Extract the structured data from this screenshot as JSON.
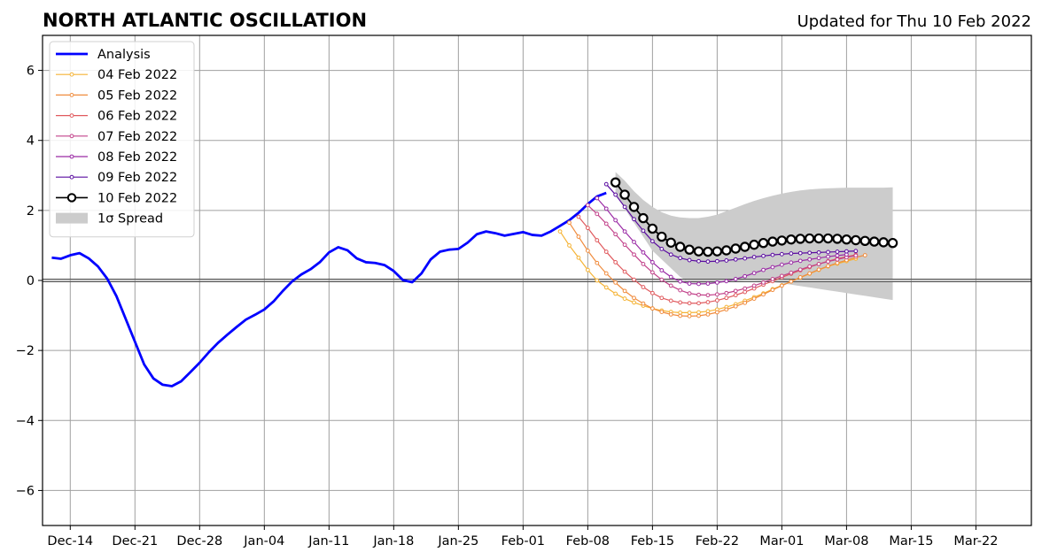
{
  "chart_data": {
    "type": "line",
    "title": "NORTH ATLANTIC OSCILLATION",
    "subtitle": "Updated for Thu 10 Feb 2022",
    "xlabel": "",
    "ylabel": "",
    "xlim": [
      "2021-12-11",
      "2022-03-28"
    ],
    "ylim": [
      -7,
      7
    ],
    "grid": true,
    "legend_position": "top-left",
    "x_ticks": [
      {
        "date": "2021-12-14",
        "label": "Dec-14"
      },
      {
        "date": "2021-12-21",
        "label": "Dec-21"
      },
      {
        "date": "2021-12-28",
        "label": "Dec-28"
      },
      {
        "date": "2022-01-04",
        "label": "Jan-04"
      },
      {
        "date": "2022-01-11",
        "label": "Jan-11"
      },
      {
        "date": "2022-01-18",
        "label": "Jan-18"
      },
      {
        "date": "2022-01-25",
        "label": "Jan-25"
      },
      {
        "date": "2022-02-01",
        "label": "Feb-01"
      },
      {
        "date": "2022-02-08",
        "label": "Feb-08"
      },
      {
        "date": "2022-02-15",
        "label": "Feb-15"
      },
      {
        "date": "2022-02-22",
        "label": "Feb-22"
      },
      {
        "date": "2022-03-01",
        "label": "Mar-01"
      },
      {
        "date": "2022-03-08",
        "label": "Mar-08"
      },
      {
        "date": "2022-03-15",
        "label": "Mar-15"
      },
      {
        "date": "2022-03-22",
        "label": "Mar-22"
      }
    ],
    "y_ticks": [
      {
        "value": -6,
        "label": "−6"
      },
      {
        "value": -4,
        "label": "−4"
      },
      {
        "value": -2,
        "label": "−2"
      },
      {
        "value": 0,
        "label": "0"
      },
      {
        "value": 2,
        "label": "2"
      },
      {
        "value": 4,
        "label": "4"
      },
      {
        "value": 6,
        "label": "6"
      }
    ],
    "series": [
      {
        "name": "Analysis",
        "color": "#0000ff",
        "style": "thick-line",
        "start": "2021-12-12",
        "values": [
          0.65,
          0.62,
          0.72,
          0.78,
          0.63,
          0.4,
          0.05,
          -0.45,
          -1.1,
          -1.75,
          -2.4,
          -2.8,
          -2.98,
          -3.02,
          -2.88,
          -2.62,
          -2.35,
          -2.05,
          -1.78,
          -1.55,
          -1.33,
          -1.12,
          -0.98,
          -0.83,
          -0.6,
          -0.3,
          -0.03,
          0.17,
          0.32,
          0.52,
          0.8,
          0.95,
          0.86,
          0.63,
          0.52,
          0.5,
          0.44,
          0.27,
          0.01,
          -0.05,
          0.2,
          0.6,
          0.82,
          0.88,
          0.9,
          1.08,
          1.32,
          1.4,
          1.35,
          1.28,
          1.33,
          1.38,
          1.3,
          1.28,
          1.4,
          1.56,
          1.72,
          1.93,
          2.18,
          2.4,
          2.5
        ]
      },
      {
        "name": "04 Feb 2022",
        "color": "#f5b335",
        "style": "thin-dots",
        "start": "2022-02-05",
        "values": [
          1.4,
          1.0,
          0.65,
          0.3,
          0.0,
          -0.2,
          -0.38,
          -0.52,
          -0.63,
          -0.72,
          -0.8,
          -0.86,
          -0.9,
          -0.92,
          -0.92,
          -0.91,
          -0.88,
          -0.83,
          -0.76,
          -0.68,
          -0.58,
          -0.48,
          -0.37,
          -0.25,
          -0.14,
          -0.03,
          0.08,
          0.19,
          0.3,
          0.4,
          0.48,
          0.55,
          0.62
        ]
      },
      {
        "name": "05 Feb 2022",
        "color": "#f08c3e",
        "style": "thin-dots",
        "start": "2022-02-06",
        "values": [
          1.65,
          1.25,
          0.85,
          0.5,
          0.2,
          -0.06,
          -0.3,
          -0.5,
          -0.66,
          -0.8,
          -0.9,
          -0.97,
          -1.01,
          -1.02,
          -1.01,
          -0.97,
          -0.91,
          -0.83,
          -0.74,
          -0.64,
          -0.52,
          -0.4,
          -0.27,
          -0.15,
          -0.03,
          0.09,
          0.2,
          0.31,
          0.41,
          0.5,
          0.58,
          0.66,
          0.72
        ]
      },
      {
        "name": "06 Feb 2022",
        "color": "#e05a5e",
        "style": "thin-dots",
        "start": "2022-02-07",
        "values": [
          1.82,
          1.5,
          1.15,
          0.82,
          0.52,
          0.25,
          0.02,
          -0.19,
          -0.36,
          -0.5,
          -0.58,
          -0.63,
          -0.65,
          -0.65,
          -0.62,
          -0.57,
          -0.5,
          -0.42,
          -0.33,
          -0.23,
          -0.12,
          -0.02,
          0.09,
          0.19,
          0.29,
          0.38,
          0.47,
          0.55,
          0.62,
          0.68,
          0.73
        ]
      },
      {
        "name": "07 Feb 2022",
        "color": "#c2428a",
        "style": "thin-dots",
        "start": "2022-02-08",
        "values": [
          2.15,
          1.9,
          1.62,
          1.32,
          1.02,
          0.74,
          0.47,
          0.23,
          0.02,
          -0.15,
          -0.28,
          -0.37,
          -0.41,
          -0.42,
          -0.4,
          -0.36,
          -0.3,
          -0.23,
          -0.15,
          -0.06,
          0.04,
          0.13,
          0.22,
          0.31,
          0.4,
          0.47,
          0.54,
          0.6,
          0.66,
          0.71
        ]
      },
      {
        "name": "08 Feb 2022",
        "color": "#9a2aa5",
        "style": "thin-dots",
        "start": "2022-02-09",
        "values": [
          2.35,
          2.05,
          1.72,
          1.4,
          1.1,
          0.8,
          0.52,
          0.29,
          0.1,
          -0.03,
          -0.09,
          -0.1,
          -0.09,
          -0.06,
          -0.02,
          0.04,
          0.12,
          0.21,
          0.3,
          0.38,
          0.45,
          0.51,
          0.56,
          0.6,
          0.64,
          0.68,
          0.71,
          0.74
        ]
      },
      {
        "name": "09 Feb 2022",
        "color": "#5a0ca0",
        "style": "thin-dots",
        "start": "2022-02-10",
        "values": [
          2.75,
          2.45,
          2.1,
          1.75,
          1.42,
          1.12,
          0.9,
          0.74,
          0.64,
          0.58,
          0.55,
          0.54,
          0.55,
          0.57,
          0.6,
          0.63,
          0.67,
          0.7,
          0.73,
          0.75,
          0.77,
          0.78,
          0.79,
          0.8,
          0.81,
          0.82,
          0.83,
          0.84
        ]
      },
      {
        "name": "10 Feb 2022",
        "color": "#000000",
        "style": "open-circles",
        "start": "2022-02-11",
        "values": [
          2.8,
          2.45,
          2.1,
          1.78,
          1.48,
          1.25,
          1.08,
          0.96,
          0.88,
          0.83,
          0.82,
          0.83,
          0.86,
          0.91,
          0.96,
          1.02,
          1.07,
          1.11,
          1.14,
          1.17,
          1.19,
          1.2,
          1.2,
          1.2,
          1.19,
          1.17,
          1.15,
          1.13,
          1.11,
          1.09,
          1.07
        ]
      }
    ],
    "spread": {
      "name": "1σ Spread",
      "color": "#cccccc",
      "start": "2022-02-11",
      "upper": [
        3.1,
        2.85,
        2.55,
        2.3,
        2.1,
        1.95,
        1.85,
        1.8,
        1.78,
        1.78,
        1.82,
        1.88,
        1.98,
        2.08,
        2.18,
        2.27,
        2.35,
        2.42,
        2.48,
        2.53,
        2.57,
        2.6,
        2.62,
        2.63,
        2.64,
        2.65,
        2.65,
        2.65,
        2.65,
        2.65,
        2.66
      ],
      "lower": [
        2.5,
        2.05,
        1.65,
        1.25,
        0.85,
        0.6,
        0.35,
        0.1,
        -0.05,
        -0.12,
        -0.12,
        -0.08,
        -0.05,
        -0.03,
        -0.02,
        -0.02,
        -0.03,
        -0.05,
        -0.08,
        -0.12,
        -0.16,
        -0.2,
        -0.24,
        -0.28,
        -0.32,
        -0.36,
        -0.4,
        -0.44,
        -0.48,
        -0.52,
        -0.56
      ]
    }
  }
}
